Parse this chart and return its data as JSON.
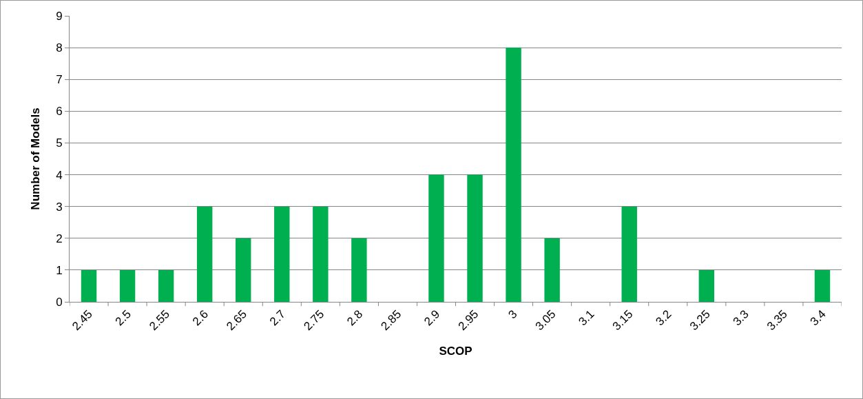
{
  "chart_data": {
    "type": "bar",
    "xlabel": "SCOP",
    "ylabel": "Number of Models",
    "categories": [
      "2.45",
      "2.5",
      "2.55",
      "2.6",
      "2.65",
      "2.7",
      "2.75",
      "2.8",
      "2.85",
      "2.9",
      "2.95",
      "3",
      "3.05",
      "3.1",
      "3.15",
      "3.2",
      "3.25",
      "3.3",
      "3.35",
      "3.4"
    ],
    "values": [
      1,
      1,
      1,
      3,
      2,
      3,
      3,
      2,
      0,
      4,
      4,
      8,
      2,
      0,
      3,
      0,
      1,
      0,
      0,
      1
    ],
    "color": "#00b050",
    "ylim": [
      0,
      9
    ],
    "yticks": [
      0,
      1,
      2,
      3,
      4,
      5,
      6,
      7,
      8,
      9
    ],
    "grid": "y"
  }
}
